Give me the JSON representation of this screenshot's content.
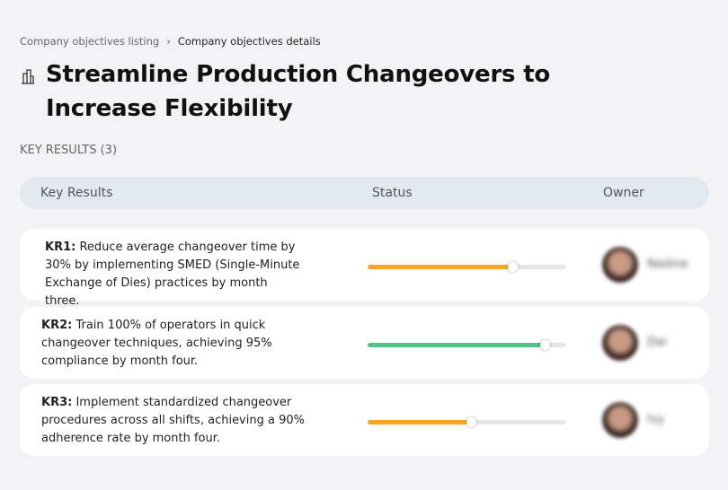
{
  "breadcrumbs": [
    "Company objectives listing",
    "Company objectives details"
  ],
  "title": "Streamline Production Changeovers to Increase Flexibility",
  "section_label": "KEY RESULTS (3)",
  "table": {
    "columns": [
      "Key Results",
      "Status",
      "Owner"
    ],
    "rows": [
      {
        "label": "KR1:",
        "text": "Reduce average changeover time by 30% by implementing SMED (Single-Minute Exchange of Dies) practices by month three.",
        "progress": 0.73,
        "color": "#f5a623",
        "owner": "Nadine"
      },
      {
        "label": "KR2:",
        "text": "Train 100% of operators in quick changeover techniques, achieving 95% compliance by month four.",
        "progress": 0.89,
        "color": "#52c48a",
        "owner": "Dai"
      },
      {
        "label": "KR3:",
        "text": "Implement standardized changeover procedures across all shifts, achieving a 90% adherence rate by month four.",
        "progress": 0.52,
        "color": "#f5a623",
        "owner": "Ivy"
      }
    ]
  }
}
